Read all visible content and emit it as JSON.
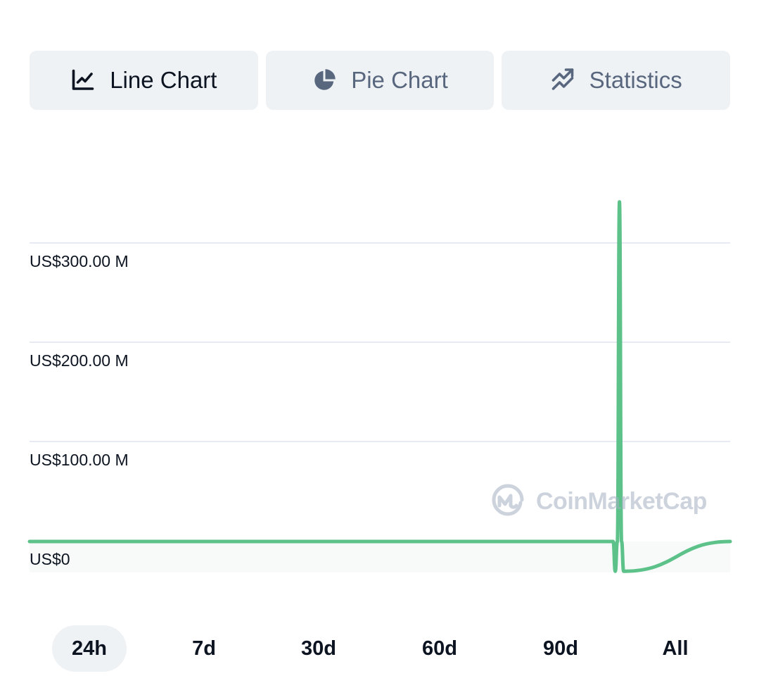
{
  "tabs": [
    {
      "label": "Line Chart",
      "icon": "line-chart-icon",
      "active": true
    },
    {
      "label": "Pie Chart",
      "icon": "pie-chart-icon",
      "active": false
    },
    {
      "label": "Statistics",
      "icon": "statistics-icon",
      "active": false
    }
  ],
  "watermark": {
    "text": "CoinMarketCap",
    "icon": "coinmarketcap-logo"
  },
  "time_ranges": [
    "24h",
    "7d",
    "30d",
    "60d",
    "90d",
    "All"
  ],
  "selected_range": "24h",
  "colors": {
    "line": "#5cc28a",
    "grid": "#cfd6e4",
    "tab_bg": "#eff2f5",
    "muted_text": "#58667e"
  },
  "chart_data": {
    "type": "line",
    "title": "",
    "xlabel": "",
    "ylabel": "",
    "ylim": [
      -30,
      345
    ],
    "yticks": [
      {
        "value": 0,
        "label": "US$0"
      },
      {
        "value": 100,
        "label": "US$100.00 M"
      },
      {
        "value": 200,
        "label": "US$200.00 M"
      },
      {
        "value": 300,
        "label": "US$300.00 M"
      }
    ],
    "unit": "US$ millions",
    "grid": true,
    "series": [
      {
        "x": [
          0,
          50,
          83.3,
          83.6,
          83.9,
          84.2,
          84.5,
          84.8,
          100
        ],
        "values": [
          0,
          0,
          0,
          -30,
          0,
          342,
          0,
          -30,
          0
        ]
      }
    ]
  }
}
